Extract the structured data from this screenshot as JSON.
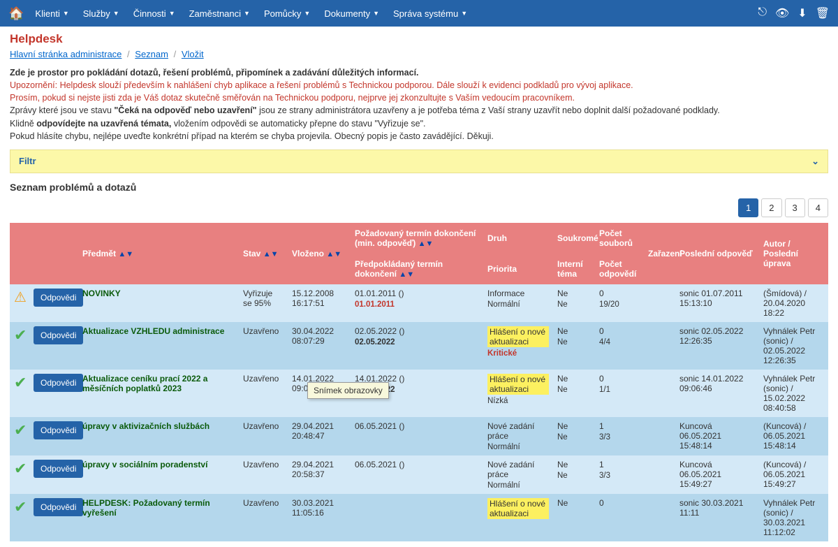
{
  "menu": {
    "items": [
      "Klienti",
      "Služby",
      "Činnosti",
      "Zaměstnanci",
      "Pomůcky",
      "Dokumenty",
      "Správa systému"
    ]
  },
  "page": {
    "title": "Helpdesk",
    "breadcrumb": {
      "home": "Hlavní stránka administrace",
      "list": "Seznam",
      "insert": "Vložit"
    }
  },
  "intro": {
    "l1": "Zde je prostor pro pokládání dotazů, řešení problémů, připomínek a zadávání důležitých informací.",
    "l2": "Upozornění: Helpdesk slouží především k nahlášení chyb aplikace a řešení problémů s Technickou podporou. Dále slouží k evidenci podkladů pro vývoj aplikace.",
    "l3": "Prosím, pokud si nejste jisti zda je Váš dotaz skutečně směřován na Technickou podporu, nejprve jej zkonzultujte s Vaším vedoucím pracovníkem.",
    "l4a": "Zprávy které jsou ve stavu ",
    "l4b": "\"Čeká na odpověď nebo uzavření\"",
    "l4c": " jsou ze strany administrátora uzavřeny a je potřeba téma z Vaší strany uzavřít nebo doplnit další požadované podklady.",
    "l5a": "Klidně ",
    "l5b": "odpovídejte na uzavřená témata,",
    "l5c": " vložením odpovědi se automaticky přepne do stavu \"Vyřizuje se\".",
    "l6": "Pokud hlásíte chybu, nejlépe uveďte konkrétní případ na kterém se chyba projevila. Obecný popis je často zavádějící. Děkuji."
  },
  "filter": {
    "label": "Filtr"
  },
  "list": {
    "title": "Seznam problémů a dotazů"
  },
  "pagination": [
    "1",
    "2",
    "3",
    "4"
  ],
  "headers": {
    "predmet": "Předmět",
    "stav": "Stav",
    "vlozeno": "Vloženo",
    "termin_min": "Požadovaný termín dokončení (min. odpověď)",
    "termin_predp": "Předpokládaný termín dokončení",
    "druh": "Druh",
    "soukrome": "Soukromé",
    "pocet_soub": "Počet souborů",
    "zarazeni": "Zařazení",
    "posledni_odp": "Poslední odpověď",
    "autor": "Autor / Poslední úprava",
    "priorita": "Priorita",
    "interni": "Interní téma",
    "pocet_odp": "Počet odpovědí"
  },
  "btn_label": "Odpovědi",
  "tooltip": "Snímek obrazovky",
  "rows": [
    {
      "status": "warn",
      "subject": "NOVINKY",
      "stav": "Vyřizuje se 95%",
      "vlozeno": "15.12.2008 16:17:51",
      "termin1": "01.01.2011 ()",
      "termin2": "01.01.2011",
      "termin2_red": true,
      "druh": "Informace",
      "soukrome": "Ne",
      "pocet_s": "0",
      "priorita": "Normální",
      "interni": "Ne",
      "pocet_o": "19/20",
      "posledni": "sonic 01.07.2011 15:13:10",
      "autor": "(Šmídová) / 20.04.2020 18:22"
    },
    {
      "status": "ok",
      "subject": "Aktualizace VZHLEDU administrace",
      "stav": "Uzavřeno",
      "vlozeno": "30.04.2022 08:07:29",
      "termin1": "02.05.2022 ()",
      "termin2": "02.05.2022",
      "termin2_red": false,
      "druh": "Hlášení o nové aktualizaci",
      "druh_hl": true,
      "soukrome": "Ne",
      "pocet_s": "0",
      "priorita": "Kritické",
      "priorita_red": true,
      "interni": "Ne",
      "pocet_o": "4/4",
      "posledni": "sonic 02.05.2022 12:26:35",
      "autor": "Vyhnálek Petr (sonic) / 02.05.2022 12:26:35"
    },
    {
      "status": "ok",
      "subject": "Aktualizace ceníku prací 2022 a měsíčních poplatků 2023",
      "stav": "Uzavřeno",
      "vlozeno": "14.01.2022 09:06:46",
      "termin1": "14.01.2022 ()",
      "termin2": "14.01.2022",
      "druh": "Hlášení o nové aktualizaci",
      "druh_hl": true,
      "soukrome": "Ne",
      "pocet_s": "0",
      "priorita": "Nízká",
      "interni": "Ne",
      "pocet_o": "1/1",
      "posledni": "sonic 14.01.2022 09:06:46",
      "autor": "Vyhnálek Petr (sonic) / 15.02.2022 08:40:58"
    },
    {
      "status": "ok",
      "subject": "úpravy v aktivizačních službách",
      "stav": "Uzavřeno",
      "vlozeno": "29.04.2021 20:48:47",
      "termin1": "06.05.2021 ()",
      "termin2": "",
      "druh": "Nové zadání práce",
      "soukrome": "Ne",
      "pocet_s": "1",
      "priorita": "Normální",
      "interni": "Ne",
      "pocet_o": "3/3",
      "posledni": "Kuncová 06.05.2021 15:48:14",
      "autor": "(Kuncová) / 06.05.2021 15:48:14"
    },
    {
      "status": "ok",
      "subject": "úpravy v sociálním poradenství",
      "stav": "Uzavřeno",
      "vlozeno": "29.04.2021 20:58:37",
      "termin1": "06.05.2021 ()",
      "termin2": "",
      "druh": "Nové zadání práce",
      "soukrome": "Ne",
      "pocet_s": "1",
      "priorita": "Normální",
      "interni": "Ne",
      "pocet_o": "3/3",
      "posledni": "Kuncová 06.05.2021 15:49:27",
      "autor": "(Kuncová) / 06.05.2021 15:49:27"
    },
    {
      "status": "ok",
      "subject": "HELPDESK: Požadovaný termín vyřešení",
      "stav": "Uzavřeno",
      "vlozeno": "30.03.2021 11:05:16",
      "termin1": "",
      "termin2": "",
      "druh": "Hlášení o nové aktualizaci",
      "druh_hl": true,
      "soukrome": "Ne",
      "pocet_s": "0",
      "priorita": "",
      "interni": "",
      "pocet_o": "",
      "posledni": "sonic 30.03.2021 11:11",
      "autor": "Vyhnálek Petr (sonic) / 30.03.2021 11:12:02"
    }
  ]
}
